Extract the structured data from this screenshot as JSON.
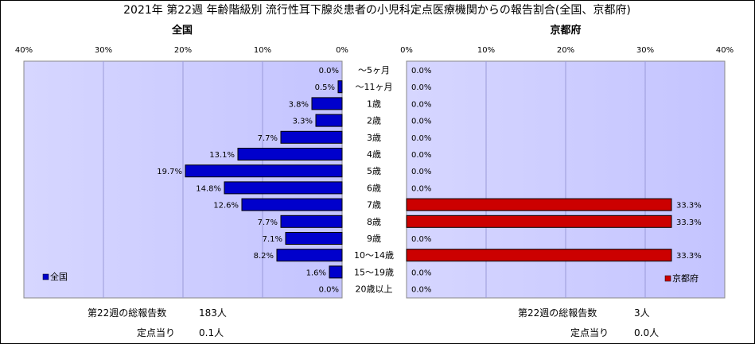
{
  "chart_data": {
    "type": "bar",
    "title": "2021年 第22週 年齢階級別 流行性耳下腺炎患者の小児科定点医療機関からの報告割合(全国、京都府)",
    "categories": [
      "～5ヶ月",
      "～11ヶ月",
      "1歳",
      "2歳",
      "3歳",
      "4歳",
      "5歳",
      "6歳",
      "7歳",
      "8歳",
      "9歳",
      "10～14歳",
      "15～19歳",
      "20歳以上"
    ],
    "axis_ticks_left": [
      "40%",
      "30%",
      "20%",
      "10%",
      "0%"
    ],
    "axis_ticks_right": [
      "0%",
      "10%",
      "20%",
      "30%",
      "40%"
    ],
    "xlim": [
      0,
      40
    ],
    "unit": "%",
    "series": [
      {
        "name": "全国",
        "panel_title": "全国",
        "color": "#0000cc",
        "values": [
          0.0,
          0.5,
          3.8,
          3.3,
          7.7,
          13.1,
          19.7,
          14.8,
          12.6,
          7.7,
          7.1,
          8.2,
          1.6,
          0.0
        ],
        "labels": [
          "0.0%",
          "0.5%",
          "3.8%",
          "3.3%",
          "7.7%",
          "13.1%",
          "19.7%",
          "14.8%",
          "12.6%",
          "7.7%",
          "7.1%",
          "8.2%",
          "1.6%",
          "0.0%"
        ],
        "legend_position": "bottom-left"
      },
      {
        "name": "京都府",
        "panel_title": "京都府",
        "color": "#cc0000",
        "values": [
          0.0,
          0.0,
          0.0,
          0.0,
          0.0,
          0.0,
          0.0,
          0.0,
          33.3,
          33.3,
          0.0,
          33.3,
          0.0,
          0.0
        ],
        "labels": [
          "0.0%",
          "0.0%",
          "0.0%",
          "0.0%",
          "0.0%",
          "0.0%",
          "0.0%",
          "0.0%",
          "33.3%",
          "33.3%",
          "0.0%",
          "33.3%",
          "0.0%",
          "0.0%"
        ],
        "legend_position": "bottom-right"
      }
    ],
    "grid": true,
    "plot_background": "#ccccff"
  },
  "footer": {
    "left": {
      "total_label": "第22週の総報告数",
      "total_value": "183人",
      "per_label": "定点当り",
      "per_value": "0.1人"
    },
    "right": {
      "total_label": "第22週の総報告数",
      "total_value": "3人",
      "per_label": "定点当り",
      "per_value": "0.0人"
    }
  }
}
